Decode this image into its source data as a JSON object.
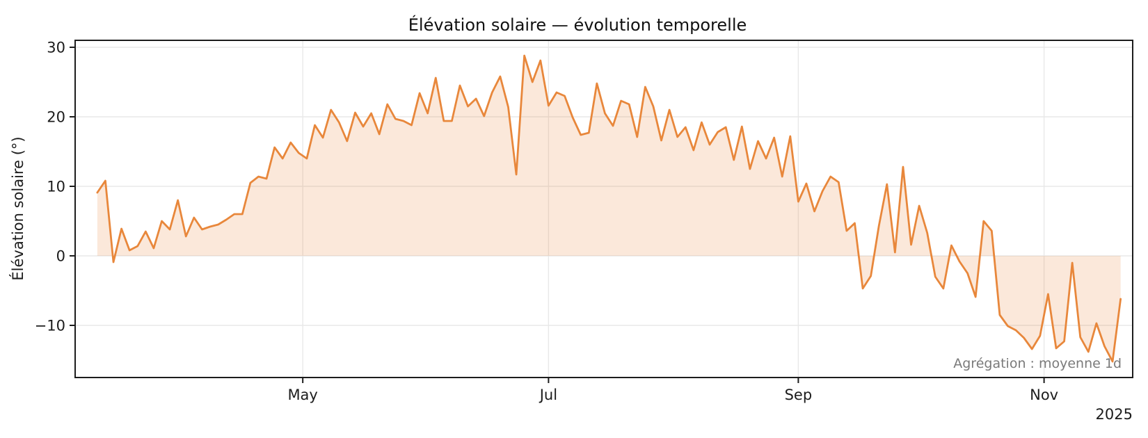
{
  "annotation": {
    "text": "Agrégation : moyenne 1d"
  },
  "x_axis": {
    "year_label": "2025"
  },
  "colors": {
    "line": "#e8873b",
    "fill": "rgba(232,135,59,0.19)",
    "grid": "#e8e8e8",
    "spine": "#1c1c1c",
    "text": "#1c1c1c",
    "annotation": "#7a7a7a",
    "background": "#ffffff"
  },
  "chart_data": {
    "type": "line",
    "title": "Élévation solaire — évolution temporelle",
    "ylabel": "Élévation solaire (°)",
    "xlabel": "",
    "legend": "none",
    "grid": true,
    "fill_to_zero": true,
    "ylim": [
      -17.5,
      31
    ],
    "yticks": [
      30,
      20,
      10,
      0,
      -10
    ],
    "xlim_days": [
      -5.5,
      257
    ],
    "xticks": [
      {
        "label": "May",
        "day": 51
      },
      {
        "label": "Jul",
        "day": 112
      },
      {
        "label": "Sep",
        "day": 174
      },
      {
        "label": "Nov",
        "day": 235
      }
    ],
    "x_day_start": 0,
    "x_day_step": 2,
    "values": [
      9.1,
      10.8,
      -0.9,
      3.9,
      0.8,
      1.4,
      3.5,
      1.1,
      5.0,
      3.8,
      8.0,
      2.8,
      5.5,
      3.8,
      4.2,
      4.5,
      5.2,
      6.0,
      6.0,
      10.5,
      11.4,
      11.1,
      15.6,
      14.0,
      16.3,
      14.8,
      14.0,
      18.8,
      17.0,
      21.0,
      19.2,
      16.5,
      20.6,
      18.6,
      20.5,
      17.5,
      21.8,
      19.7,
      19.4,
      18.8,
      23.4,
      20.5,
      25.6,
      19.4,
      19.4,
      24.5,
      21.5,
      22.6,
      20.1,
      23.5,
      25.8,
      21.4,
      11.7,
      28.8,
      25.0,
      28.1,
      21.6,
      23.5,
      23.0,
      19.9,
      17.4,
      17.7,
      24.8,
      20.5,
      18.7,
      22.3,
      21.8,
      17.1,
      24.3,
      21.5,
      16.6,
      21.0,
      17.1,
      18.5,
      15.2,
      19.2,
      16.0,
      17.8,
      18.5,
      13.8,
      18.6,
      12.5,
      16.5,
      14.0,
      17.0,
      11.4,
      17.2,
      7.8,
      10.4,
      6.4,
      9.3,
      11.4,
      10.6,
      3.6,
      4.7,
      -4.7,
      -2.9,
      4.3,
      10.3,
      0.5,
      12.8,
      1.6,
      7.2,
      3.3,
      -3.0,
      -4.7,
      1.5,
      -0.8,
      -2.5,
      -5.9,
      5.0,
      3.6,
      -8.5,
      -10.1,
      -10.7,
      -11.8,
      -13.4,
      -11.5,
      -5.5,
      -13.3,
      -12.3,
      -1.0,
      -11.7,
      -13.8,
      -9.7,
      -13.0,
      -15.2,
      -6.2
    ]
  }
}
